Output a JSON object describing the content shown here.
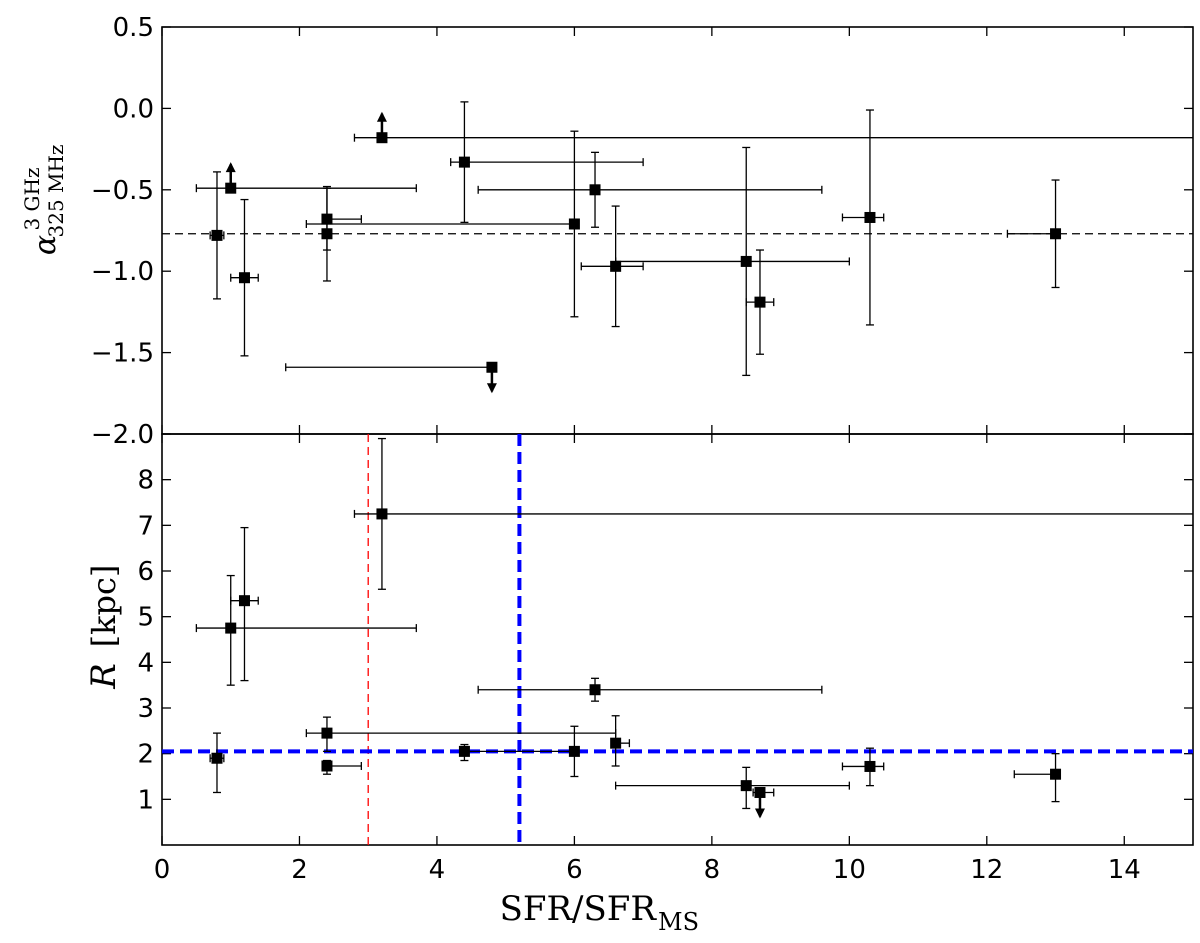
{
  "chart_data": [
    {
      "type": "scatter",
      "panel": "top",
      "ylabel": {
        "symbol": "α",
        "superscript": "3 GHz",
        "subscript": "325 MHz"
      },
      "xlim": [
        0,
        15
      ],
      "ylim": [
        -2.0,
        0.5
      ],
      "yticks": [
        -2.0,
        -1.5,
        -1.0,
        -0.5,
        0.0,
        0.5
      ],
      "ytick_labels": [
        "−2.0",
        "−1.5",
        "−1.0",
        "−0.5",
        "0.0",
        "0.5"
      ],
      "reference_lines": [
        {
          "orientation": "horizontal",
          "value": -0.77,
          "style": "dashed",
          "color": "#000000"
        }
      ],
      "points": [
        {
          "x": 0.8,
          "y": -0.78,
          "xerr": [
            0.1,
            0.1
          ],
          "yerr": [
            0.39,
            0.39
          ]
        },
        {
          "x": 1.0,
          "y": -0.49,
          "xerr": [
            0.5,
            2.7
          ],
          "yerr": [
            0,
            0
          ],
          "limit": "lower"
        },
        {
          "x": 1.2,
          "y": -1.04,
          "xerr": [
            0.2,
            0.2
          ],
          "yerr": [
            0.48,
            0.48
          ]
        },
        {
          "x": 2.4,
          "y": -0.68,
          "xerr": [
            0,
            0.5
          ],
          "yerr": [
            0.19,
            0.19
          ]
        },
        {
          "x": 2.4,
          "y": -0.77,
          "xerr": [
            0,
            0
          ],
          "yerr": [
            0.29,
            0.29
          ]
        },
        {
          "x": 3.2,
          "y": -0.18,
          "xerr": [
            0.4,
            11.8
          ],
          "yerr": [
            0,
            0
          ],
          "limit": "lower"
        },
        {
          "x": 4.4,
          "y": -0.33,
          "xerr": [
            0.2,
            2.6
          ],
          "yerr": [
            0.37,
            0.37
          ]
        },
        {
          "x": 4.8,
          "y": -1.59,
          "xerr": [
            3.0,
            0
          ],
          "yerr": [
            0,
            0
          ],
          "limit": "upper"
        },
        {
          "x": 6.0,
          "y": -0.71,
          "xerr": [
            3.9,
            0
          ],
          "yerr": [
            0.57,
            0.57
          ]
        },
        {
          "x": 6.3,
          "y": -0.5,
          "xerr": [
            1.7,
            3.3
          ],
          "yerr": [
            0.23,
            0.23
          ]
        },
        {
          "x": 6.6,
          "y": -0.97,
          "xerr": [
            0.5,
            0.4
          ],
          "yerr": [
            0.37,
            0.37
          ]
        },
        {
          "x": 8.5,
          "y": -0.94,
          "xerr": [
            1.9,
            1.5
          ],
          "yerr": [
            0.7,
            0.7
          ]
        },
        {
          "x": 8.7,
          "y": -1.19,
          "xerr": [
            0.2,
            0.2
          ],
          "yerr": [
            0.32,
            0.32
          ]
        },
        {
          "x": 10.3,
          "y": -0.67,
          "xerr": [
            0.4,
            0.2
          ],
          "yerr": [
            0.66,
            0.66
          ]
        },
        {
          "x": 13.0,
          "y": -0.77,
          "xerr": [
            0.7,
            0
          ],
          "yerr": [
            0.33,
            0.33
          ]
        }
      ]
    },
    {
      "type": "scatter",
      "panel": "bottom",
      "ylabel": {
        "symbol": "R",
        "unit": "[kpc]"
      },
      "xlabel": {
        "main": "SFR/SFR",
        "subscript": "MS"
      },
      "xlim": [
        0,
        15
      ],
      "ylim": [
        0,
        9
      ],
      "yticks": [
        1,
        2,
        3,
        4,
        5,
        6,
        7,
        8
      ],
      "xticks": [
        0,
        2,
        4,
        6,
        8,
        10,
        12,
        14
      ],
      "reference_lines": [
        {
          "orientation": "vertical",
          "value": 3.0,
          "style": "dashed-thin",
          "color": "#ff0000"
        },
        {
          "orientation": "vertical",
          "value": 5.2,
          "style": "dashed-thick",
          "color": "#0000ff"
        },
        {
          "orientation": "horizontal",
          "value": 2.05,
          "style": "dashed-thick",
          "color": "#0000ff"
        }
      ],
      "points": [
        {
          "x": 0.8,
          "y": 1.9,
          "xerr": [
            0.1,
            0.1
          ],
          "yerr": [
            0.75,
            0.55
          ]
        },
        {
          "x": 1.0,
          "y": 4.75,
          "xerr": [
            0.5,
            2.7
          ],
          "yerr": [
            1.25,
            1.15
          ]
        },
        {
          "x": 1.2,
          "y": 5.35,
          "xerr": [
            0.2,
            0.2
          ],
          "yerr": [
            1.75,
            1.6
          ]
        },
        {
          "x": 2.4,
          "y": 2.45,
          "xerr": [
            0.3,
            4.2
          ],
          "yerr": [
            0.4,
            0.35
          ]
        },
        {
          "x": 2.4,
          "y": 1.73,
          "xerr": [
            0,
            0.5
          ],
          "yerr": [
            0.18,
            0.12
          ]
        },
        {
          "x": 3.2,
          "y": 7.25,
          "xerr": [
            0.4,
            11.8
          ],
          "yerr": [
            1.65,
            1.65
          ]
        },
        {
          "x": 4.4,
          "y": 2.05,
          "xerr": [
            0,
            1.6
          ],
          "yerr": [
            0.2,
            0.15
          ]
        },
        {
          "x": 6.0,
          "y": 2.05,
          "xerr": [
            0,
            0
          ],
          "yerr": [
            0.55,
            0.55
          ]
        },
        {
          "x": 6.3,
          "y": 3.4,
          "xerr": [
            1.7,
            3.3
          ],
          "yerr": [
            0.25,
            0.25
          ]
        },
        {
          "x": 6.6,
          "y": 2.23,
          "xerr": [
            0,
            0.2
          ],
          "yerr": [
            0.5,
            0.6
          ]
        },
        {
          "x": 8.5,
          "y": 1.3,
          "xerr": [
            1.9,
            1.5
          ],
          "yerr": [
            0.5,
            0.4
          ]
        },
        {
          "x": 8.7,
          "y": 1.15,
          "xerr": [
            0.1,
            0.2
          ],
          "yerr": [
            0,
            0
          ],
          "limit": "upper"
        },
        {
          "x": 10.3,
          "y": 1.72,
          "xerr": [
            0.4,
            0.2
          ],
          "yerr": [
            0.42,
            0.4
          ]
        },
        {
          "x": 13.0,
          "y": 1.55,
          "xerr": [
            0.6,
            0
          ],
          "yerr": [
            0.6,
            0.45
          ]
        }
      ]
    }
  ]
}
